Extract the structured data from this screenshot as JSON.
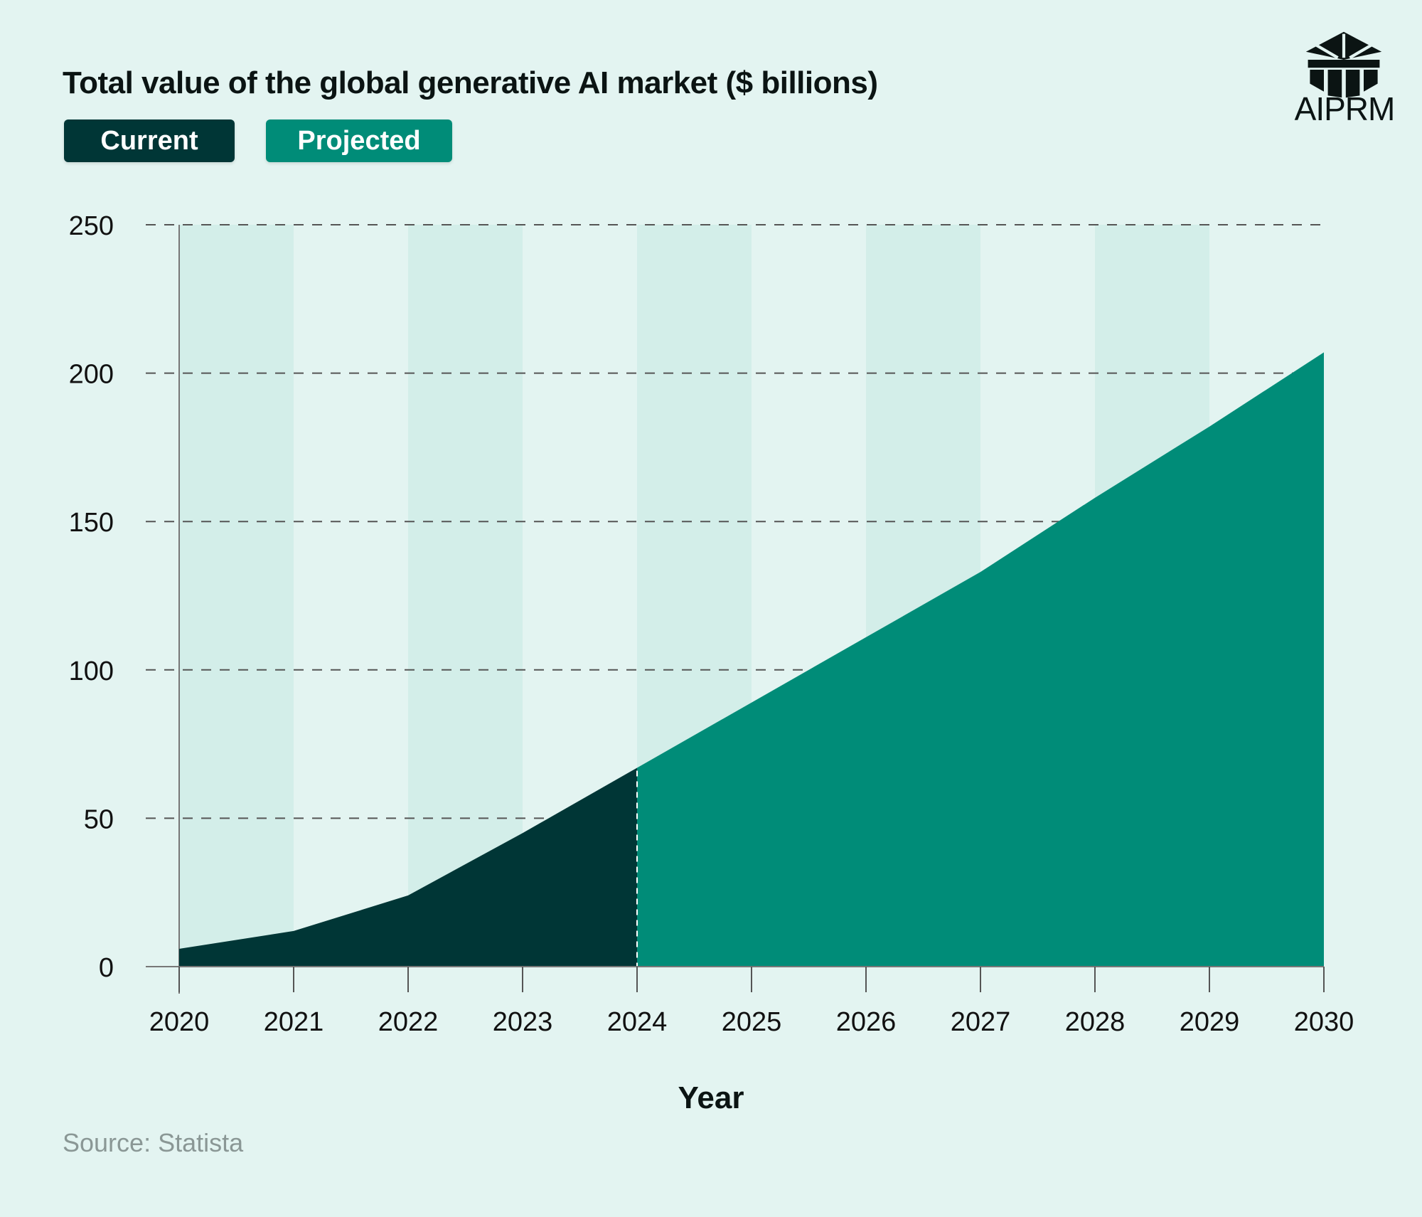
{
  "header": {
    "title": "Total value of the global generative AI market ($ billions)"
  },
  "legend": {
    "current_label": "Current",
    "projected_label": "Projected"
  },
  "brand": {
    "logo_icon": "aiprm-logo-icon",
    "logo_text": "AIPRM"
  },
  "footer": {
    "source": "Source: Statista"
  },
  "colors": {
    "background": "#e3f4f1",
    "band": "#d3eee9",
    "current": "#003636",
    "projected": "#008c78",
    "grid": "#555555"
  },
  "chart_data": {
    "type": "area",
    "title": "Total value of the global generative AI market ($ billions)",
    "xlabel": "Year",
    "ylabel": "",
    "x": [
      2020,
      2021,
      2022,
      2023,
      2024,
      2025,
      2026,
      2027,
      2028,
      2029,
      2030
    ],
    "values": [
      6,
      12,
      24,
      45,
      67,
      89,
      111,
      133,
      158,
      182,
      207
    ],
    "series": [
      {
        "name": "Current",
        "x_range": [
          2020,
          2024
        ]
      },
      {
        "name": "Projected",
        "x_range": [
          2024,
          2030
        ]
      }
    ],
    "ylim": [
      0,
      250
    ],
    "yticks": [
      0,
      50,
      100,
      150,
      200,
      250
    ],
    "grid": "horizontal-dashed",
    "legend_position": "top-left"
  }
}
